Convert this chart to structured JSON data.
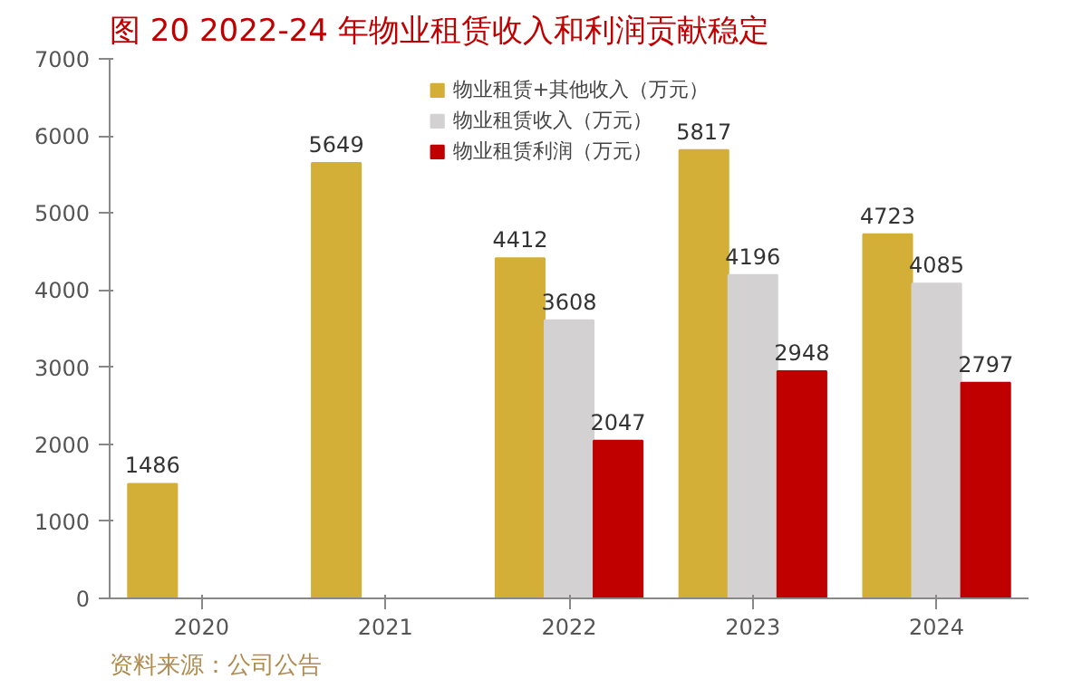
{
  "chart_data": {
    "type": "bar",
    "title": "图 20 2022-24 年物业租赁收入和利润贡献稳定",
    "categories": [
      "2020",
      "2021",
      "2022",
      "2023",
      "2024"
    ],
    "series": [
      {
        "name": "物业租赁+其他收入（万元）",
        "color": "#d4af37",
        "values": [
          1486,
          5649,
          4412,
          5817,
          4723
        ]
      },
      {
        "name": "物业租赁收入（万元）",
        "color": "#d3d1d2",
        "values": [
          null,
          null,
          3608,
          4196,
          4085
        ]
      },
      {
        "name": "物业租赁利润（万元）",
        "color": "#c00000",
        "values": [
          null,
          null,
          2047,
          2948,
          2797
        ]
      }
    ],
    "ylim": [
      0,
      7000
    ],
    "yticks": [
      0,
      1000,
      2000,
      3000,
      4000,
      5000,
      6000,
      7000
    ],
    "grid": false,
    "legend": "top",
    "data_labels": true,
    "annotations": [
      "资料来源：公司公告"
    ]
  }
}
